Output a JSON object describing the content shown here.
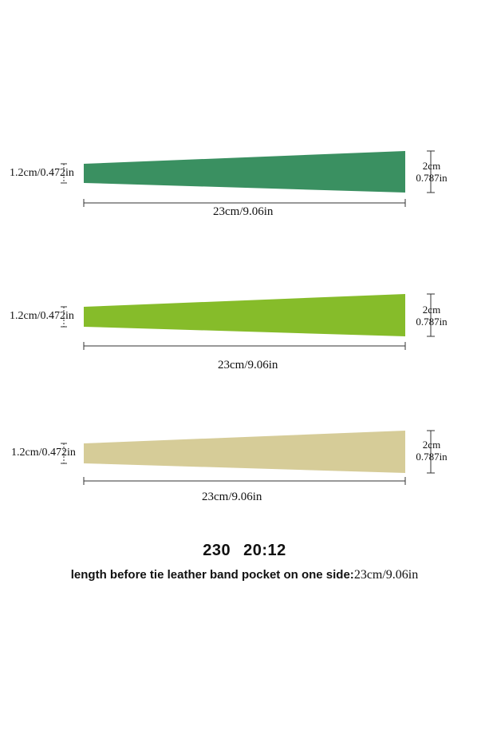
{
  "bands": [
    {
      "color": "#3a9061",
      "narrow_end_label": "1.2cm/0.472in",
      "wide_end_cm": "2cm",
      "wide_end_in": "0.787in",
      "length_label": "23cm/9.06in"
    },
    {
      "color": "#86bc2a",
      "narrow_end_label": "1.2cm/0.472in",
      "wide_end_cm": "2cm",
      "wide_end_in": "0.787in",
      "length_label": "23cm/9.06in"
    },
    {
      "color": "#d6cc98",
      "narrow_end_label": "1.2cm/0.472in",
      "wide_end_cm": "2cm",
      "wide_end_in": "0.787in",
      "length_label": "23cm/9.06in"
    }
  ],
  "size_code": {
    "part1": "230",
    "part2": "20:12"
  },
  "caption": {
    "bold_text": "length before tie leather band pocket on one side:",
    "measure_text": "23cm/9.06in"
  }
}
